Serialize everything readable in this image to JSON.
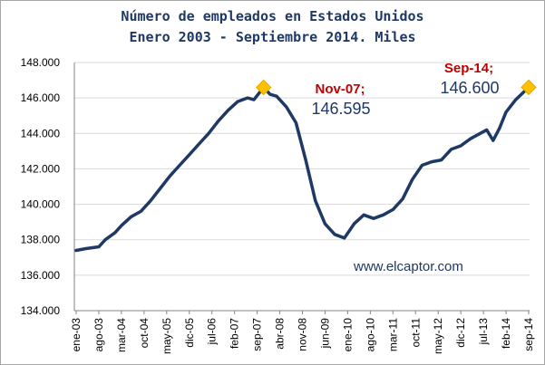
{
  "chart_data": {
    "type": "line",
    "title": "Número de empleados en Estados Unidos",
    "subtitle": "Enero 2003 - Septiembre 2014. Miles",
    "xlabel": "",
    "ylabel": "",
    "ylim": [
      134000,
      148000
    ],
    "y_ticks": [
      "134.000",
      "136.000",
      "138.000",
      "140.000",
      "142.000",
      "144.000",
      "146.000",
      "148.000"
    ],
    "y_tick_values": [
      134000,
      136000,
      138000,
      140000,
      142000,
      144000,
      146000,
      148000
    ],
    "x_ticks": [
      "ene-03",
      "ago-03",
      "mar-04",
      "oct-04",
      "may-05",
      "dic-05",
      "jul-06",
      "feb-07",
      "sep-07",
      "abr-08",
      "nov-08",
      "jun-09",
      "ene-10",
      "ago-10",
      "mar-11",
      "oct-11",
      "may-12",
      "dic-12",
      "jul-13",
      "feb-14",
      "sep-14"
    ],
    "gridlines": "horizontal",
    "legend": "none",
    "line_color": "#1f3864",
    "marker_color": "#ffc000",
    "series": [
      {
        "x": [
          "2003-01",
          "2003-04",
          "2003-08",
          "2003-10",
          "2004-01",
          "2004-03",
          "2004-06",
          "2004-09",
          "2004-12",
          "2005-03",
          "2005-06",
          "2005-09",
          "2005-12",
          "2006-03",
          "2006-06",
          "2006-09",
          "2006-12",
          "2007-03",
          "2007-06",
          "2007-08",
          "2007-11",
          "2008-01",
          "2008-03",
          "2008-06",
          "2008-09",
          "2008-12",
          "2009-03",
          "2009-06",
          "2009-09",
          "2009-12",
          "2010-03",
          "2010-06",
          "2010-09",
          "2010-12",
          "2011-03",
          "2011-06",
          "2011-09",
          "2011-12",
          "2012-03",
          "2012-06",
          "2012-09",
          "2012-12",
          "2013-03",
          "2013-06",
          "2013-08",
          "2013-10",
          "2013-12",
          "2014-02",
          "2014-05",
          "2014-09"
        ],
        "values": [
          137400,
          137500,
          137600,
          138000,
          138400,
          138800,
          139300,
          139600,
          140200,
          140900,
          141600,
          142200,
          142800,
          143400,
          144000,
          144700,
          145300,
          145800,
          146000,
          145900,
          146595,
          146200,
          146100,
          145500,
          144600,
          142500,
          140200,
          138900,
          138300,
          138100,
          138900,
          139400,
          139200,
          139400,
          139700,
          140300,
          141400,
          142200,
          142400,
          142500,
          143100,
          143300,
          143700,
          144000,
          144200,
          143600,
          144300,
          145200,
          145900,
          146600
        ]
      }
    ],
    "annotations": [
      {
        "label": "Nov-07;",
        "value": "146.595",
        "x": "2007-11",
        "y": 146595
      },
      {
        "label": "Sep-14;",
        "value": "146.600",
        "x": "2014-09",
        "y": 146600
      }
    ],
    "watermark": "www.elcaptor.com"
  }
}
